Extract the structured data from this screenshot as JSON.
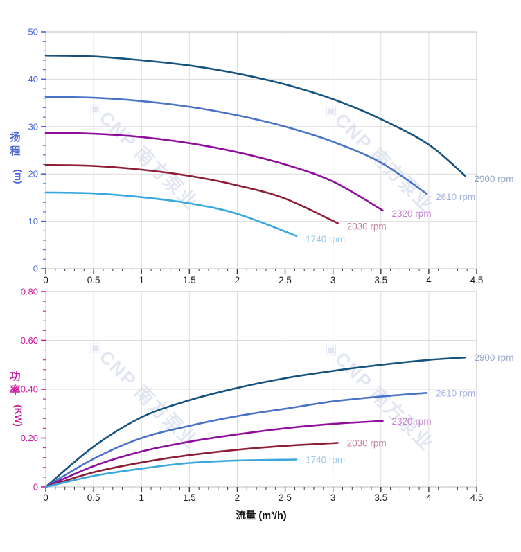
{
  "watermark": {
    "logo_glyph": "◈",
    "text": "CNP 南方泵业",
    "color": "#c9d3e8"
  },
  "colors": {
    "grid": "#dcdcdc",
    "border": "#c9c9c9",
    "x_tick_color": "#3a3a3a",
    "x_label_color": "#1a1a1a",
    "x_title_color": "#111111"
  },
  "chart_data": [
    {
      "type": "line",
      "title": "",
      "xlabel": "",
      "ylabel": "扬程",
      "ylabel_unit": "(m)",
      "xlim": [
        0,
        4.5
      ],
      "ylim": [
        0,
        50
      ],
      "x_major_step": 0.5,
      "x_minor_step": 0.1,
      "y_major_step": 10,
      "y_minor_step": 2,
      "grid": true,
      "legend_position": "curve-ends",
      "axis_color": "#4a67d8",
      "x_tick_labels": [
        "0",
        "0.5",
        "1",
        "1.5",
        "2",
        "2.5",
        "3",
        "3.5",
        "4",
        "4.5"
      ],
      "y_tick_labels": [
        "0",
        "10",
        "20",
        "30",
        "40",
        "50"
      ],
      "series": [
        {
          "name": "2900 rpm",
          "color": "#17537f",
          "label_color": "#93a6c9",
          "points": [
            [
              0,
              45
            ],
            [
              0.5,
              44.8
            ],
            [
              1,
              44.0
            ],
            [
              1.5,
              42.9
            ],
            [
              2,
              41.2
            ],
            [
              2.5,
              38.9
            ],
            [
              3,
              35.8
            ],
            [
              3.5,
              31.6
            ],
            [
              4,
              26.2
            ],
            [
              4.38,
              19.6
            ]
          ]
        },
        {
          "name": "2610 rpm",
          "color": "#4a72c8",
          "label_color": "#a5b2e4",
          "points": [
            [
              0,
              36.3
            ],
            [
              0.5,
              36.1
            ],
            [
              1,
              35.4
            ],
            [
              1.5,
              34.2
            ],
            [
              2,
              32.4
            ],
            [
              2.5,
              30.0
            ],
            [
              3,
              26.8
            ],
            [
              3.5,
              22.4
            ],
            [
              3.98,
              15.8
            ]
          ]
        },
        {
          "name": "2320 rpm",
          "color": "#8f0d9b",
          "label_color": "#c77fd2",
          "points": [
            [
              0,
              28.7
            ],
            [
              0.5,
              28.5
            ],
            [
              1,
              27.8
            ],
            [
              1.5,
              26.5
            ],
            [
              2,
              24.6
            ],
            [
              2.5,
              22.0
            ],
            [
              3,
              18.4
            ],
            [
              3.52,
              12.3
            ]
          ]
        },
        {
          "name": "2030 rpm",
          "color": "#8e1d36",
          "label_color": "#c4879a",
          "points": [
            [
              0,
              21.9
            ],
            [
              0.5,
              21.7
            ],
            [
              1,
              20.9
            ],
            [
              1.5,
              19.6
            ],
            [
              2,
              17.6
            ],
            [
              2.5,
              14.8
            ],
            [
              3.05,
              9.6
            ]
          ]
        },
        {
          "name": "1740 rpm",
          "color": "#39a8de",
          "label_color": "#99ccf0",
          "points": [
            [
              0,
              16.1
            ],
            [
              0.5,
              15.9
            ],
            [
              1,
              15.1
            ],
            [
              1.5,
              13.8
            ],
            [
              2,
              11.6
            ],
            [
              2.62,
              6.9
            ]
          ]
        }
      ]
    },
    {
      "type": "line",
      "title": "",
      "xlabel": "流量 (m³/h)",
      "ylabel": "功率",
      "ylabel_unit": "(KW)",
      "xlim": [
        0,
        4.5
      ],
      "ylim": [
        0,
        0.8
      ],
      "x_major_step": 0.5,
      "x_minor_step": 0.1,
      "y_major_step": 0.2,
      "y_minor_step": 0.04,
      "grid": true,
      "legend_position": "curve-ends",
      "axis_color": "#c91c9e",
      "x_tick_labels": [
        "0",
        "0.5",
        "1",
        "1.5",
        "2",
        "2.5",
        "3",
        "3.5",
        "4",
        "4.5"
      ],
      "y_tick_labels": [
        "0",
        "0.20",
        "0.40",
        "0.60",
        "0.80"
      ],
      "series": [
        {
          "name": "2900 rpm",
          "color": "#17537f",
          "label_color": "#93a6c9",
          "points": [
            [
              0,
              0
            ],
            [
              0.5,
              0.165
            ],
            [
              1,
              0.285
            ],
            [
              1.5,
              0.355
            ],
            [
              2,
              0.405
            ],
            [
              2.5,
              0.445
            ],
            [
              3,
              0.475
            ],
            [
              3.5,
              0.5
            ],
            [
              4,
              0.52
            ],
            [
              4.38,
              0.53
            ]
          ]
        },
        {
          "name": "2610 rpm",
          "color": "#4a72c8",
          "label_color": "#a5b2e4",
          "points": [
            [
              0,
              0
            ],
            [
              0.5,
              0.115
            ],
            [
              1,
              0.2
            ],
            [
              1.5,
              0.25
            ],
            [
              2,
              0.29
            ],
            [
              2.5,
              0.32
            ],
            [
              3,
              0.35
            ],
            [
              3.5,
              0.37
            ],
            [
              3.98,
              0.385
            ]
          ]
        },
        {
          "name": "2320 rpm",
          "color": "#8f0d9b",
          "label_color": "#c77fd2",
          "points": [
            [
              0,
              0
            ],
            [
              0.5,
              0.085
            ],
            [
              1,
              0.145
            ],
            [
              1.5,
              0.185
            ],
            [
              2,
              0.215
            ],
            [
              2.5,
              0.24
            ],
            [
              3,
              0.258
            ],
            [
              3.52,
              0.27
            ]
          ]
        },
        {
          "name": "2030 rpm",
          "color": "#8e1d36",
          "label_color": "#c4879a",
          "points": [
            [
              0,
              0
            ],
            [
              0.5,
              0.06
            ],
            [
              1,
              0.1
            ],
            [
              1.5,
              0.13
            ],
            [
              2,
              0.152
            ],
            [
              2.5,
              0.168
            ],
            [
              3.05,
              0.18
            ]
          ]
        },
        {
          "name": "1740 rpm",
          "color": "#39a8de",
          "label_color": "#99ccf0",
          "points": [
            [
              0,
              0
            ],
            [
              0.5,
              0.045
            ],
            [
              1,
              0.075
            ],
            [
              1.5,
              0.098
            ],
            [
              2,
              0.108
            ],
            [
              2.62,
              0.112
            ]
          ]
        }
      ]
    }
  ]
}
